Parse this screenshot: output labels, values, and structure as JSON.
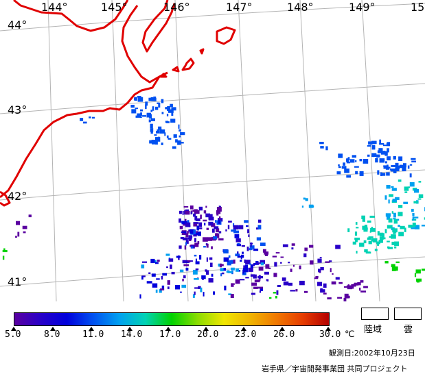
{
  "map": {
    "longitude_labels": [
      "144°",
      "145°",
      "146°",
      "147°",
      "148°",
      "149°",
      "15"
    ],
    "latitude_labels": [
      "44°",
      "43°",
      "42°",
      "41°"
    ]
  },
  "legend": {
    "tick_labels": [
      "5.0",
      "8.0",
      "11.0",
      "14.0",
      "17.0",
      "20.0",
      "23.0",
      "26.0",
      "30.0"
    ],
    "unit": "℃",
    "land_label": "陸域",
    "cloud_label": "雲",
    "land_color": "#ffffff",
    "cloud_color": "#ffffff"
  },
  "colors": {
    "coastline": "#e00000",
    "grid": "#b4b4b4",
    "scale": [
      "#5a00a0",
      "#2800c8",
      "#0000dc",
      "#0050f0",
      "#00a0f0",
      "#00d2b4",
      "#00d200",
      "#8cdc00",
      "#f0e600",
      "#f0b400",
      "#f07800",
      "#e63c00",
      "#b40000"
    ]
  },
  "observation": "観測日:2002年10月23日",
  "credit": "岩手県／宇宙開発事業団 共同プロジェクト"
}
